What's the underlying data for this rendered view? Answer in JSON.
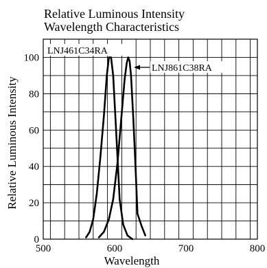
{
  "chart_data": {
    "type": "line",
    "title": "Relative Luminous Intensity",
    "subtitle": "Wavelength Characteristics",
    "xlabel": "Wavelength",
    "ylabel": "Relative Luminous Intensity",
    "xlim": [
      500,
      800
    ],
    "ylim": [
      0,
      110
    ],
    "x_ticks": [
      500,
      600,
      700,
      800
    ],
    "y_ticks": [
      0,
      20,
      40,
      60,
      80,
      100
    ],
    "grid": true,
    "series": [
      {
        "name": "LNJ461C34RA",
        "points": [
          [
            560,
            1
          ],
          [
            565,
            4
          ],
          [
            570,
            11
          ],
          [
            575,
            25
          ],
          [
            580,
            45
          ],
          [
            585,
            68
          ],
          [
            589,
            90
          ],
          [
            592,
            100
          ],
          [
            595,
            100
          ],
          [
            598,
            90
          ],
          [
            601,
            68
          ],
          [
            604,
            45
          ],
          [
            607,
            22
          ],
          [
            612,
            8
          ],
          [
            618,
            2
          ],
          [
            625,
            0
          ]
        ]
      },
      {
        "name": "LNJ861C38RA",
        "points": [
          [
            578,
            1
          ],
          [
            585,
            4
          ],
          [
            592,
            11
          ],
          [
            598,
            22
          ],
          [
            604,
            42
          ],
          [
            609,
            65
          ],
          [
            614,
            88
          ],
          [
            617,
            97
          ],
          [
            619,
            100
          ],
          [
            621,
            98
          ],
          [
            623,
            90
          ],
          [
            626,
            68
          ],
          [
            629,
            42
          ],
          [
            632,
            14
          ],
          [
            638,
            7
          ],
          [
            643,
            2
          ]
        ]
      }
    ]
  }
}
